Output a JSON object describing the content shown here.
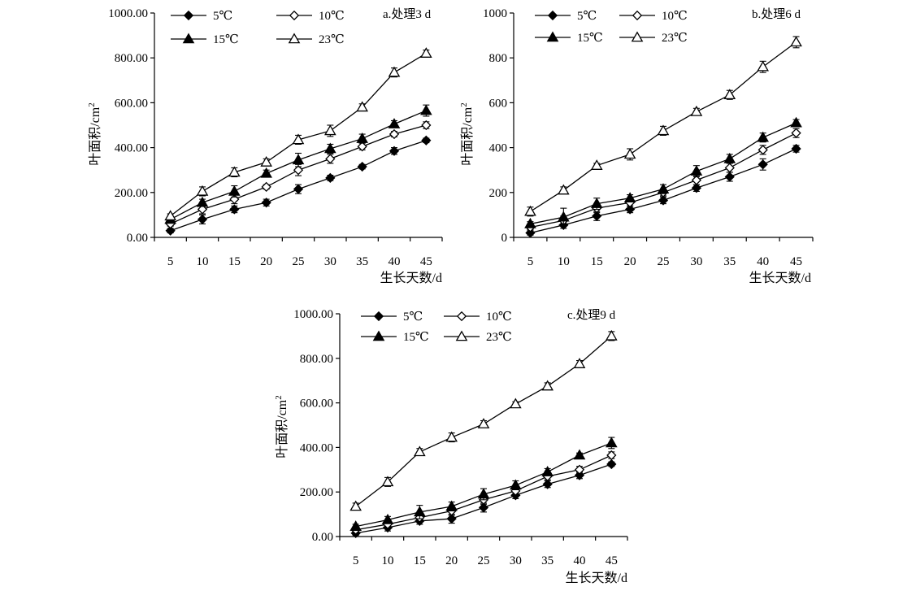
{
  "chart_data": [
    {
      "type": "line",
      "title": "a.处理3 d",
      "xlabel": "生长天数/d",
      "ylabel": "叶面积/cm",
      "ylabel_sup": "2",
      "x": [
        5,
        10,
        15,
        20,
        25,
        30,
        35,
        40,
        45
      ],
      "ylim": [
        0,
        1000
      ],
      "yticks": [
        "0.00",
        "200.00",
        "400.00",
        "600.00",
        "800.00",
        "1000.00"
      ],
      "legend_position": "top-left",
      "grid": false,
      "series": [
        {
          "name": "5℃",
          "marker": "diamond-filled",
          "values": [
            30,
            80,
            125,
            155,
            215,
            265,
            315,
            385,
            432
          ],
          "errors": [
            10,
            20,
            15,
            15,
            20,
            12,
            10,
            15,
            10
          ]
        },
        {
          "name": "10℃",
          "marker": "diamond-open",
          "values": [
            60,
            125,
            170,
            225,
            300,
            350,
            405,
            460,
            500
          ],
          "errors": [
            10,
            20,
            20,
            10,
            25,
            20,
            15,
            12,
            15
          ]
        },
        {
          "name": "15℃",
          "marker": "triangle-filled",
          "values": [
            80,
            155,
            205,
            285,
            345,
            395,
            440,
            505,
            565
          ],
          "errors": [
            10,
            15,
            25,
            15,
            30,
            20,
            20,
            15,
            25
          ]
        },
        {
          "name": "23℃",
          "marker": "triangle-open",
          "values": [
            95,
            205,
            290,
            335,
            435,
            475,
            580,
            735,
            820
          ],
          "errors": [
            10,
            20,
            20,
            15,
            20,
            25,
            15,
            20,
            15
          ]
        }
      ]
    },
    {
      "type": "line",
      "title": "b.处理6 d",
      "xlabel": "生长天数/d",
      "ylabel": "叶面积/cm",
      "ylabel_sup": "2",
      "x": [
        5,
        10,
        15,
        20,
        25,
        30,
        35,
        40,
        45
      ],
      "ylim": [
        0,
        1000
      ],
      "yticks": [
        "0",
        "200",
        "400",
        "600",
        "800",
        "1000"
      ],
      "legend_position": "top-left",
      "grid": false,
      "series": [
        {
          "name": "5℃",
          "marker": "diamond-filled",
          "values": [
            20,
            55,
            95,
            125,
            165,
            220,
            270,
            325,
            395
          ],
          "errors": [
            10,
            15,
            20,
            15,
            15,
            15,
            20,
            25,
            15
          ]
        },
        {
          "name": "10℃",
          "marker": "diamond-open",
          "values": [
            45,
            75,
            130,
            155,
            200,
            255,
            310,
            390,
            465
          ],
          "errors": [
            10,
            20,
            20,
            15,
            15,
            20,
            20,
            20,
            20
          ]
        },
        {
          "name": "15℃",
          "marker": "triangle-filled",
          "values": [
            60,
            90,
            150,
            175,
            215,
            295,
            350,
            445,
            510
          ],
          "errors": [
            10,
            40,
            25,
            15,
            20,
            25,
            20,
            20,
            15
          ]
        },
        {
          "name": "23℃",
          "marker": "triangle-open",
          "values": [
            115,
            210,
            320,
            370,
            475,
            560,
            635,
            760,
            870
          ],
          "errors": [
            20,
            15,
            10,
            25,
            20,
            15,
            20,
            25,
            25
          ]
        }
      ]
    },
    {
      "type": "line",
      "title": "c.处理9 d",
      "xlabel": "生长天数/d",
      "ylabel": "叶面积/cm",
      "ylabel_sup": "2",
      "x": [
        5,
        10,
        15,
        20,
        25,
        30,
        35,
        40,
        45
      ],
      "ylim": [
        0,
        1000
      ],
      "yticks": [
        "0.00",
        "200.00",
        "400.00",
        "600.00",
        "800.00",
        "1000.00"
      ],
      "legend_position": "top-left",
      "grid": false,
      "series": [
        {
          "name": "5℃",
          "marker": "diamond-filled",
          "values": [
            15,
            40,
            70,
            80,
            130,
            185,
            235,
            275,
            325
          ],
          "errors": [
            10,
            15,
            15,
            20,
            20,
            15,
            15,
            15,
            10
          ]
        },
        {
          "name": "10℃",
          "marker": "diamond-open",
          "values": [
            30,
            55,
            85,
            115,
            165,
            205,
            270,
            300,
            365
          ],
          "errors": [
            10,
            15,
            15,
            20,
            20,
            15,
            15,
            15,
            15
          ]
        },
        {
          "name": "15℃",
          "marker": "triangle-filled",
          "values": [
            45,
            75,
            110,
            135,
            190,
            230,
            290,
            365,
            420
          ],
          "errors": [
            10,
            15,
            30,
            20,
            25,
            20,
            15,
            10,
            25
          ]
        },
        {
          "name": "23℃",
          "marker": "triangle-open",
          "values": [
            135,
            245,
            380,
            445,
            505,
            595,
            675,
            775,
            900
          ],
          "errors": [
            15,
            20,
            15,
            20,
            15,
            10,
            15,
            15,
            20
          ]
        }
      ]
    }
  ]
}
